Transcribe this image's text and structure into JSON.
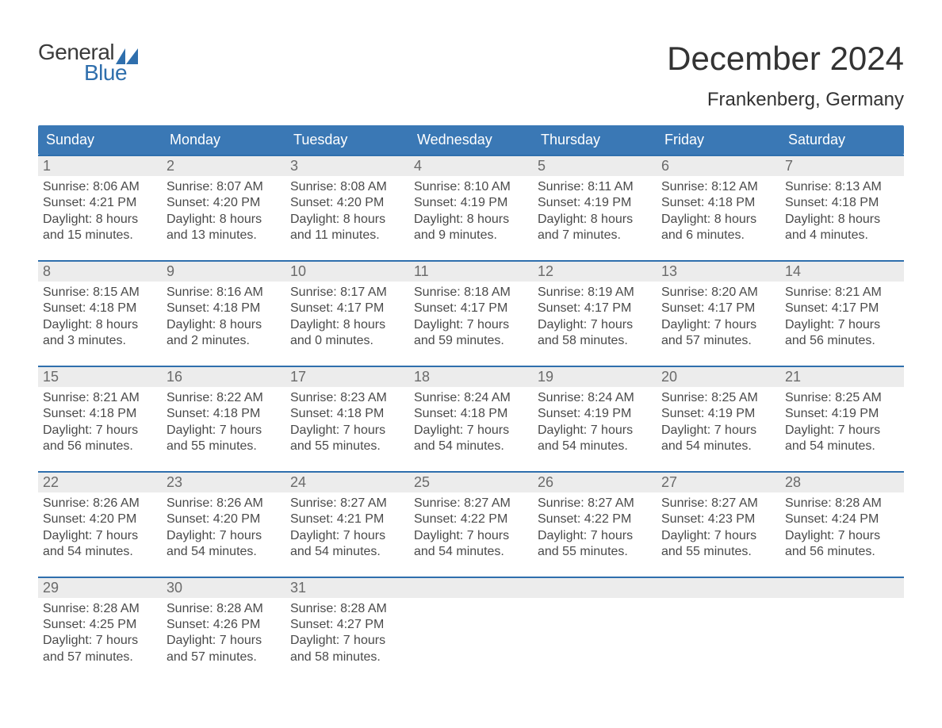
{
  "brand": {
    "word1": "General",
    "word2": "Blue"
  },
  "title": "December 2024",
  "subtitle": "Frankenberg, Germany",
  "colors": {
    "header_bg": "#3a78b5",
    "week_border": "#2f6fad",
    "daynum_bg": "#ececec",
    "text": "#333333",
    "muted": "#6a6a6a",
    "body_text": "#4a4a4a",
    "brand_blue": "#2f6fad",
    "background": "#ffffff"
  },
  "typography": {
    "title_fontsize": 42,
    "subtitle_fontsize": 24,
    "header_fontsize": 18,
    "daynum_fontsize": 18,
    "body_fontsize": 16
  },
  "day_headers": [
    "Sunday",
    "Monday",
    "Tuesday",
    "Wednesday",
    "Thursday",
    "Friday",
    "Saturday"
  ],
  "weeks": [
    [
      {
        "n": "1",
        "sunrise": "Sunrise: 8:06 AM",
        "sunset": "Sunset: 4:21 PM",
        "d1": "Daylight: 8 hours",
        "d2": "and 15 minutes."
      },
      {
        "n": "2",
        "sunrise": "Sunrise: 8:07 AM",
        "sunset": "Sunset: 4:20 PM",
        "d1": "Daylight: 8 hours",
        "d2": "and 13 minutes."
      },
      {
        "n": "3",
        "sunrise": "Sunrise: 8:08 AM",
        "sunset": "Sunset: 4:20 PM",
        "d1": "Daylight: 8 hours",
        "d2": "and 11 minutes."
      },
      {
        "n": "4",
        "sunrise": "Sunrise: 8:10 AM",
        "sunset": "Sunset: 4:19 PM",
        "d1": "Daylight: 8 hours",
        "d2": "and 9 minutes."
      },
      {
        "n": "5",
        "sunrise": "Sunrise: 8:11 AM",
        "sunset": "Sunset: 4:19 PM",
        "d1": "Daylight: 8 hours",
        "d2": "and 7 minutes."
      },
      {
        "n": "6",
        "sunrise": "Sunrise: 8:12 AM",
        "sunset": "Sunset: 4:18 PM",
        "d1": "Daylight: 8 hours",
        "d2": "and 6 minutes."
      },
      {
        "n": "7",
        "sunrise": "Sunrise: 8:13 AM",
        "sunset": "Sunset: 4:18 PM",
        "d1": "Daylight: 8 hours",
        "d2": "and 4 minutes."
      }
    ],
    [
      {
        "n": "8",
        "sunrise": "Sunrise: 8:15 AM",
        "sunset": "Sunset: 4:18 PM",
        "d1": "Daylight: 8 hours",
        "d2": "and 3 minutes."
      },
      {
        "n": "9",
        "sunrise": "Sunrise: 8:16 AM",
        "sunset": "Sunset: 4:18 PM",
        "d1": "Daylight: 8 hours",
        "d2": "and 2 minutes."
      },
      {
        "n": "10",
        "sunrise": "Sunrise: 8:17 AM",
        "sunset": "Sunset: 4:17 PM",
        "d1": "Daylight: 8 hours",
        "d2": "and 0 minutes."
      },
      {
        "n": "11",
        "sunrise": "Sunrise: 8:18 AM",
        "sunset": "Sunset: 4:17 PM",
        "d1": "Daylight: 7 hours",
        "d2": "and 59 minutes."
      },
      {
        "n": "12",
        "sunrise": "Sunrise: 8:19 AM",
        "sunset": "Sunset: 4:17 PM",
        "d1": "Daylight: 7 hours",
        "d2": "and 58 minutes."
      },
      {
        "n": "13",
        "sunrise": "Sunrise: 8:20 AM",
        "sunset": "Sunset: 4:17 PM",
        "d1": "Daylight: 7 hours",
        "d2": "and 57 minutes."
      },
      {
        "n": "14",
        "sunrise": "Sunrise: 8:21 AM",
        "sunset": "Sunset: 4:17 PM",
        "d1": "Daylight: 7 hours",
        "d2": "and 56 minutes."
      }
    ],
    [
      {
        "n": "15",
        "sunrise": "Sunrise: 8:21 AM",
        "sunset": "Sunset: 4:18 PM",
        "d1": "Daylight: 7 hours",
        "d2": "and 56 minutes."
      },
      {
        "n": "16",
        "sunrise": "Sunrise: 8:22 AM",
        "sunset": "Sunset: 4:18 PM",
        "d1": "Daylight: 7 hours",
        "d2": "and 55 minutes."
      },
      {
        "n": "17",
        "sunrise": "Sunrise: 8:23 AM",
        "sunset": "Sunset: 4:18 PM",
        "d1": "Daylight: 7 hours",
        "d2": "and 55 minutes."
      },
      {
        "n": "18",
        "sunrise": "Sunrise: 8:24 AM",
        "sunset": "Sunset: 4:18 PM",
        "d1": "Daylight: 7 hours",
        "d2": "and 54 minutes."
      },
      {
        "n": "19",
        "sunrise": "Sunrise: 8:24 AM",
        "sunset": "Sunset: 4:19 PM",
        "d1": "Daylight: 7 hours",
        "d2": "and 54 minutes."
      },
      {
        "n": "20",
        "sunrise": "Sunrise: 8:25 AM",
        "sunset": "Sunset: 4:19 PM",
        "d1": "Daylight: 7 hours",
        "d2": "and 54 minutes."
      },
      {
        "n": "21",
        "sunrise": "Sunrise: 8:25 AM",
        "sunset": "Sunset: 4:19 PM",
        "d1": "Daylight: 7 hours",
        "d2": "and 54 minutes."
      }
    ],
    [
      {
        "n": "22",
        "sunrise": "Sunrise: 8:26 AM",
        "sunset": "Sunset: 4:20 PM",
        "d1": "Daylight: 7 hours",
        "d2": "and 54 minutes."
      },
      {
        "n": "23",
        "sunrise": "Sunrise: 8:26 AM",
        "sunset": "Sunset: 4:20 PM",
        "d1": "Daylight: 7 hours",
        "d2": "and 54 minutes."
      },
      {
        "n": "24",
        "sunrise": "Sunrise: 8:27 AM",
        "sunset": "Sunset: 4:21 PM",
        "d1": "Daylight: 7 hours",
        "d2": "and 54 minutes."
      },
      {
        "n": "25",
        "sunrise": "Sunrise: 8:27 AM",
        "sunset": "Sunset: 4:22 PM",
        "d1": "Daylight: 7 hours",
        "d2": "and 54 minutes."
      },
      {
        "n": "26",
        "sunrise": "Sunrise: 8:27 AM",
        "sunset": "Sunset: 4:22 PM",
        "d1": "Daylight: 7 hours",
        "d2": "and 55 minutes."
      },
      {
        "n": "27",
        "sunrise": "Sunrise: 8:27 AM",
        "sunset": "Sunset: 4:23 PM",
        "d1": "Daylight: 7 hours",
        "d2": "and 55 minutes."
      },
      {
        "n": "28",
        "sunrise": "Sunrise: 8:28 AM",
        "sunset": "Sunset: 4:24 PM",
        "d1": "Daylight: 7 hours",
        "d2": "and 56 minutes."
      }
    ],
    [
      {
        "n": "29",
        "sunrise": "Sunrise: 8:28 AM",
        "sunset": "Sunset: 4:25 PM",
        "d1": "Daylight: 7 hours",
        "d2": "and 57 minutes."
      },
      {
        "n": "30",
        "sunrise": "Sunrise: 8:28 AM",
        "sunset": "Sunset: 4:26 PM",
        "d1": "Daylight: 7 hours",
        "d2": "and 57 minutes."
      },
      {
        "n": "31",
        "sunrise": "Sunrise: 8:28 AM",
        "sunset": "Sunset: 4:27 PM",
        "d1": "Daylight: 7 hours",
        "d2": "and 58 minutes."
      },
      null,
      null,
      null,
      null
    ]
  ]
}
